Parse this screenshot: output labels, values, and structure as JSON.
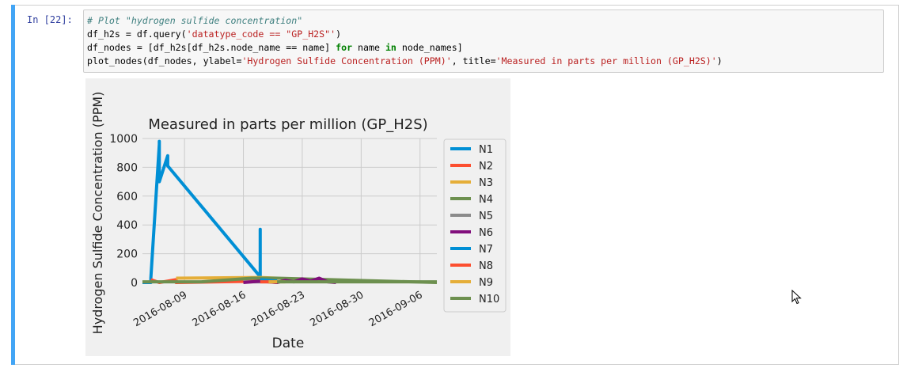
{
  "cell": {
    "prompt": "In [22]:",
    "code_lines": [
      [
        {
          "t": "# Plot \"hydrogen sulfide concentration\"",
          "c": "comment"
        }
      ],
      [
        {
          "t": "df_h2s = df.query(",
          "c": ""
        },
        {
          "t": "'datatype_code == \"GP_H2S\"'",
          "c": "str"
        },
        {
          "t": ")",
          "c": ""
        }
      ],
      [
        {
          "t": "df_nodes = [df_h2s[df_h2s.node_name == name] ",
          "c": ""
        },
        {
          "t": "for",
          "c": "kw"
        },
        {
          "t": " name ",
          "c": ""
        },
        {
          "t": "in",
          "c": "kw"
        },
        {
          "t": " node_names]",
          "c": ""
        }
      ],
      [
        {
          "t": "plot_nodes(df_nodes, ylabel=",
          "c": ""
        },
        {
          "t": "'Hydrogen Sulfide Concentration (PPM)'",
          "c": "str"
        },
        {
          "t": ", title=",
          "c": ""
        },
        {
          "t": "'Measured in parts per million (GP_H2S)'",
          "c": "str"
        },
        {
          "t": ")",
          "c": ""
        }
      ]
    ]
  },
  "colors": {
    "cell_bar": "#42a5f5",
    "prompt": "#303f9f",
    "comment": "#408080",
    "string": "#ba2121",
    "keyword": "#008000"
  },
  "chart_data": {
    "type": "line",
    "title": "Measured in parts per million (GP_H2S)",
    "xlabel": "Date",
    "ylabel": "Hydrogen Sulfide Concentration (PPM)",
    "ylim": [
      0,
      1000
    ],
    "xlim": [
      "2016-08-04",
      "2016-09-08"
    ],
    "yticks": [
      0,
      200,
      400,
      600,
      800,
      1000
    ],
    "xticks": [
      "2016-08-09",
      "2016-08-16",
      "2016-08-23",
      "2016-08-30",
      "2016-09-06"
    ],
    "grid": true,
    "legend_position": "right",
    "series": [
      {
        "name": "N1",
        "color": "#008fd5",
        "points": [
          [
            "2016-08-04",
            0
          ],
          [
            "2016-08-05",
            0
          ],
          [
            "2016-08-05",
            30
          ],
          [
            "2016-08-06",
            960
          ],
          [
            "2016-08-06",
            980
          ],
          [
            "2016-08-06",
            700
          ],
          [
            "2016-08-07",
            880
          ],
          [
            "2016-08-07",
            810
          ],
          [
            "2016-08-18",
            40
          ],
          [
            "2016-08-18",
            370
          ],
          [
            "2016-08-18",
            30
          ]
        ]
      },
      {
        "name": "N2",
        "color": "#fc4f30",
        "points": [
          [
            "2016-08-05",
            20
          ],
          [
            "2016-08-06",
            0
          ],
          [
            "2016-08-07",
            10
          ],
          [
            "2016-08-08",
            20
          ],
          [
            "2016-08-08",
            0
          ],
          [
            "2016-08-18",
            10
          ],
          [
            "2016-08-20",
            0
          ]
        ]
      },
      {
        "name": "N3",
        "color": "#e5ae38",
        "points": [
          [
            "2016-08-08",
            30
          ],
          [
            "2016-08-18",
            35
          ],
          [
            "2016-08-20",
            30
          ]
        ]
      },
      {
        "name": "N4",
        "color": "#6d904f",
        "points": [
          [
            "2016-08-04",
            5
          ],
          [
            "2016-08-11",
            5
          ],
          [
            "2016-08-17",
            30
          ],
          [
            "2016-08-20",
            30
          ],
          [
            "2016-09-08",
            0
          ]
        ]
      },
      {
        "name": "N5",
        "color": "#8b8b8b",
        "points": [
          [
            "2016-08-16",
            5
          ],
          [
            "2016-08-20",
            5
          ]
        ]
      },
      {
        "name": "N6",
        "color": "#810f7c",
        "points": [
          [
            "2016-08-16",
            0
          ],
          [
            "2016-08-18",
            10
          ],
          [
            "2016-08-20",
            0
          ],
          [
            "2016-08-21",
            15
          ],
          [
            "2016-08-22",
            5
          ],
          [
            "2016-08-23",
            25
          ],
          [
            "2016-08-24",
            10
          ],
          [
            "2016-08-25",
            30
          ],
          [
            "2016-08-26",
            5
          ],
          [
            "2016-08-27",
            0
          ]
        ]
      },
      {
        "name": "N7",
        "color": "#008fd5",
        "points": [
          [
            "2016-08-18",
            20
          ],
          [
            "2016-08-20",
            10
          ]
        ]
      },
      {
        "name": "N8",
        "color": "#fc4f30",
        "points": [
          [
            "2016-08-18",
            5
          ],
          [
            "2016-08-20",
            5
          ]
        ]
      },
      {
        "name": "N9",
        "color": "#e5ae38",
        "points": [
          [
            "2016-08-19",
            5
          ],
          [
            "2016-08-21",
            5
          ]
        ]
      },
      {
        "name": "N10",
        "color": "#6d904f",
        "points": [
          [
            "2016-08-20",
            5
          ],
          [
            "2016-09-08",
            5
          ]
        ]
      }
    ]
  }
}
